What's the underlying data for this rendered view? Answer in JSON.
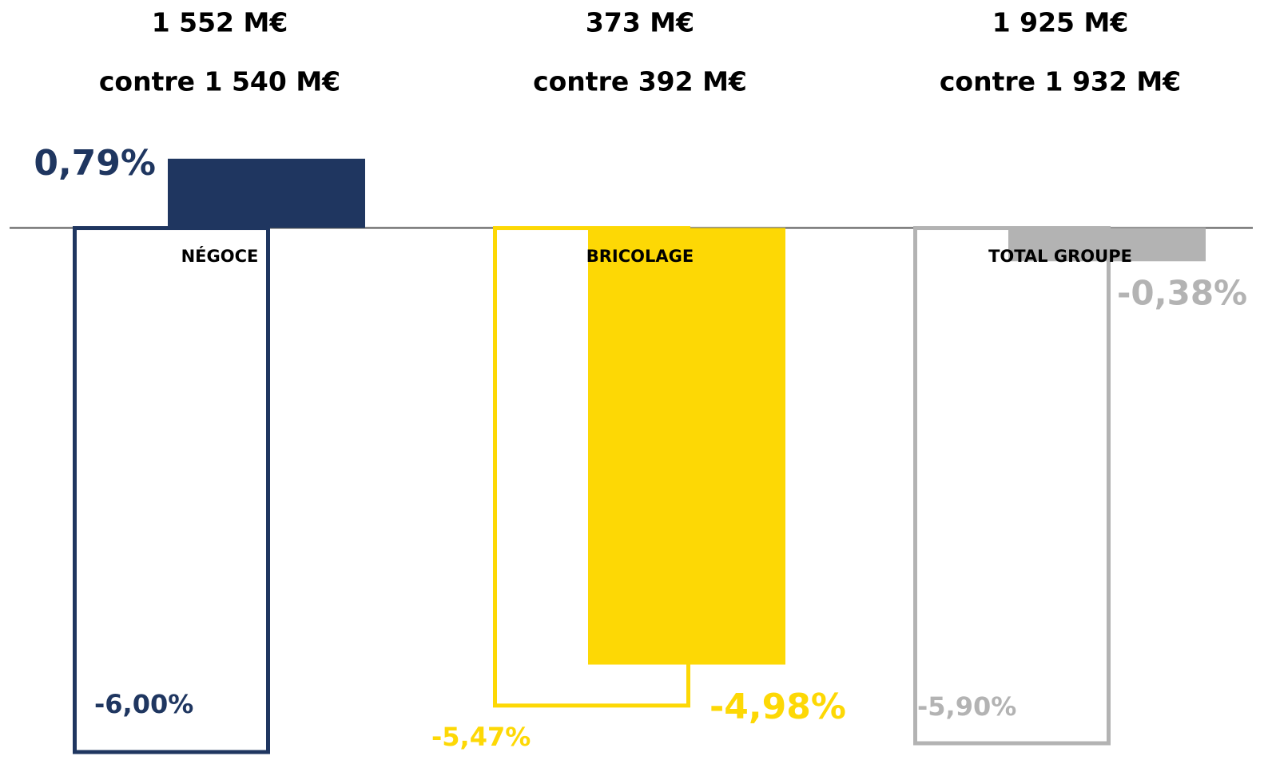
{
  "chart_data": {
    "type": "bar",
    "categories": [
      "NÉGOCE",
      "BRICOLAGE",
      "TOTAL GROUPE"
    ],
    "headlines": [
      "1 552 M€",
      "373 M€",
      "1 925 M€"
    ],
    "comparisons": [
      "contre 1 540 M€",
      "contre 392 M€",
      "contre 1 932 M€"
    ],
    "category_colors": [
      "#1f3660",
      "#fdd805",
      "#b3b3b3"
    ],
    "series": [
      {
        "style": "outline",
        "values": [
          -6.0,
          -5.47,
          -5.9
        ],
        "value_labels": [
          "-6,00%",
          "-5,47%",
          "-5,90%"
        ]
      },
      {
        "style": "filled",
        "values": [
          0.79,
          -4.98,
          -0.38
        ],
        "value_labels": [
          "0,79%",
          "-4,98%",
          "-0,38%"
        ]
      }
    ],
    "ylim": [
      -6.05,
      2.6
    ]
  }
}
